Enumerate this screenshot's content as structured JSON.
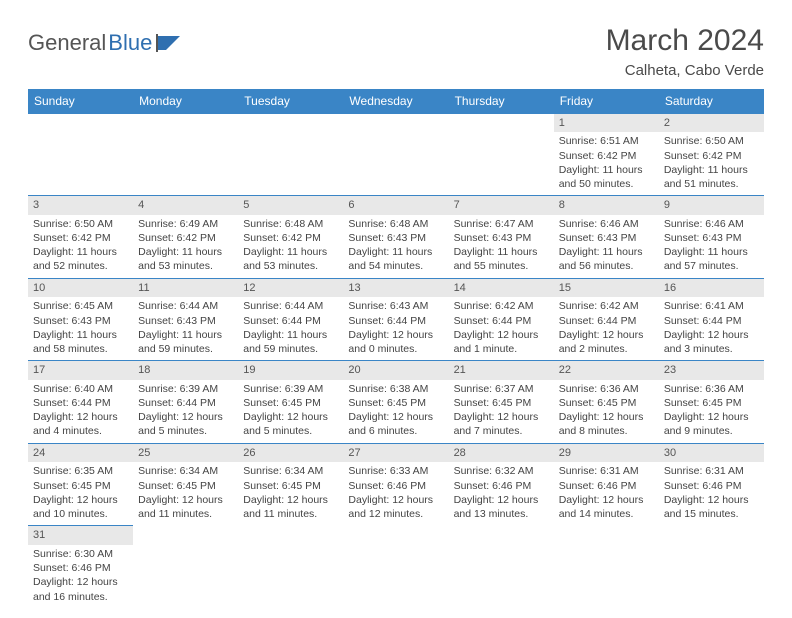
{
  "logo": {
    "text1": "General",
    "text2": "Blue"
  },
  "title": "March 2024",
  "subtitle": "Calheta, Cabo Verde",
  "dayHeaders": [
    "Sunday",
    "Monday",
    "Tuesday",
    "Wednesday",
    "Thursday",
    "Friday",
    "Saturday"
  ],
  "colors": {
    "headerBg": "#3a85c6",
    "headerText": "#ffffff",
    "dayNumBg": "#e8e8e8",
    "border": "#3a85c6",
    "logoBlue": "#2f6fb0"
  },
  "weeks": [
    [
      {
        "n": "",
        "sr": "",
        "ss": "",
        "dl": ""
      },
      {
        "n": "",
        "sr": "",
        "ss": "",
        "dl": ""
      },
      {
        "n": "",
        "sr": "",
        "ss": "",
        "dl": ""
      },
      {
        "n": "",
        "sr": "",
        "ss": "",
        "dl": ""
      },
      {
        "n": "",
        "sr": "",
        "ss": "",
        "dl": ""
      },
      {
        "n": "1",
        "sr": "Sunrise: 6:51 AM",
        "ss": "Sunset: 6:42 PM",
        "dl": "Daylight: 11 hours and 50 minutes."
      },
      {
        "n": "2",
        "sr": "Sunrise: 6:50 AM",
        "ss": "Sunset: 6:42 PM",
        "dl": "Daylight: 11 hours and 51 minutes."
      }
    ],
    [
      {
        "n": "3",
        "sr": "Sunrise: 6:50 AM",
        "ss": "Sunset: 6:42 PM",
        "dl": "Daylight: 11 hours and 52 minutes."
      },
      {
        "n": "4",
        "sr": "Sunrise: 6:49 AM",
        "ss": "Sunset: 6:42 PM",
        "dl": "Daylight: 11 hours and 53 minutes."
      },
      {
        "n": "5",
        "sr": "Sunrise: 6:48 AM",
        "ss": "Sunset: 6:42 PM",
        "dl": "Daylight: 11 hours and 53 minutes."
      },
      {
        "n": "6",
        "sr": "Sunrise: 6:48 AM",
        "ss": "Sunset: 6:43 PM",
        "dl": "Daylight: 11 hours and 54 minutes."
      },
      {
        "n": "7",
        "sr": "Sunrise: 6:47 AM",
        "ss": "Sunset: 6:43 PM",
        "dl": "Daylight: 11 hours and 55 minutes."
      },
      {
        "n": "8",
        "sr": "Sunrise: 6:46 AM",
        "ss": "Sunset: 6:43 PM",
        "dl": "Daylight: 11 hours and 56 minutes."
      },
      {
        "n": "9",
        "sr": "Sunrise: 6:46 AM",
        "ss": "Sunset: 6:43 PM",
        "dl": "Daylight: 11 hours and 57 minutes."
      }
    ],
    [
      {
        "n": "10",
        "sr": "Sunrise: 6:45 AM",
        "ss": "Sunset: 6:43 PM",
        "dl": "Daylight: 11 hours and 58 minutes."
      },
      {
        "n": "11",
        "sr": "Sunrise: 6:44 AM",
        "ss": "Sunset: 6:43 PM",
        "dl": "Daylight: 11 hours and 59 minutes."
      },
      {
        "n": "12",
        "sr": "Sunrise: 6:44 AM",
        "ss": "Sunset: 6:44 PM",
        "dl": "Daylight: 11 hours and 59 minutes."
      },
      {
        "n": "13",
        "sr": "Sunrise: 6:43 AM",
        "ss": "Sunset: 6:44 PM",
        "dl": "Daylight: 12 hours and 0 minutes."
      },
      {
        "n": "14",
        "sr": "Sunrise: 6:42 AM",
        "ss": "Sunset: 6:44 PM",
        "dl": "Daylight: 12 hours and 1 minute."
      },
      {
        "n": "15",
        "sr": "Sunrise: 6:42 AM",
        "ss": "Sunset: 6:44 PM",
        "dl": "Daylight: 12 hours and 2 minutes."
      },
      {
        "n": "16",
        "sr": "Sunrise: 6:41 AM",
        "ss": "Sunset: 6:44 PM",
        "dl": "Daylight: 12 hours and 3 minutes."
      }
    ],
    [
      {
        "n": "17",
        "sr": "Sunrise: 6:40 AM",
        "ss": "Sunset: 6:44 PM",
        "dl": "Daylight: 12 hours and 4 minutes."
      },
      {
        "n": "18",
        "sr": "Sunrise: 6:39 AM",
        "ss": "Sunset: 6:44 PM",
        "dl": "Daylight: 12 hours and 5 minutes."
      },
      {
        "n": "19",
        "sr": "Sunrise: 6:39 AM",
        "ss": "Sunset: 6:45 PM",
        "dl": "Daylight: 12 hours and 5 minutes."
      },
      {
        "n": "20",
        "sr": "Sunrise: 6:38 AM",
        "ss": "Sunset: 6:45 PM",
        "dl": "Daylight: 12 hours and 6 minutes."
      },
      {
        "n": "21",
        "sr": "Sunrise: 6:37 AM",
        "ss": "Sunset: 6:45 PM",
        "dl": "Daylight: 12 hours and 7 minutes."
      },
      {
        "n": "22",
        "sr": "Sunrise: 6:36 AM",
        "ss": "Sunset: 6:45 PM",
        "dl": "Daylight: 12 hours and 8 minutes."
      },
      {
        "n": "23",
        "sr": "Sunrise: 6:36 AM",
        "ss": "Sunset: 6:45 PM",
        "dl": "Daylight: 12 hours and 9 minutes."
      }
    ],
    [
      {
        "n": "24",
        "sr": "Sunrise: 6:35 AM",
        "ss": "Sunset: 6:45 PM",
        "dl": "Daylight: 12 hours and 10 minutes."
      },
      {
        "n": "25",
        "sr": "Sunrise: 6:34 AM",
        "ss": "Sunset: 6:45 PM",
        "dl": "Daylight: 12 hours and 11 minutes."
      },
      {
        "n": "26",
        "sr": "Sunrise: 6:34 AM",
        "ss": "Sunset: 6:45 PM",
        "dl": "Daylight: 12 hours and 11 minutes."
      },
      {
        "n": "27",
        "sr": "Sunrise: 6:33 AM",
        "ss": "Sunset: 6:46 PM",
        "dl": "Daylight: 12 hours and 12 minutes."
      },
      {
        "n": "28",
        "sr": "Sunrise: 6:32 AM",
        "ss": "Sunset: 6:46 PM",
        "dl": "Daylight: 12 hours and 13 minutes."
      },
      {
        "n": "29",
        "sr": "Sunrise: 6:31 AM",
        "ss": "Sunset: 6:46 PM",
        "dl": "Daylight: 12 hours and 14 minutes."
      },
      {
        "n": "30",
        "sr": "Sunrise: 6:31 AM",
        "ss": "Sunset: 6:46 PM",
        "dl": "Daylight: 12 hours and 15 minutes."
      }
    ],
    [
      {
        "n": "31",
        "sr": "Sunrise: 6:30 AM",
        "ss": "Sunset: 6:46 PM",
        "dl": "Daylight: 12 hours and 16 minutes."
      },
      {
        "n": "",
        "sr": "",
        "ss": "",
        "dl": ""
      },
      {
        "n": "",
        "sr": "",
        "ss": "",
        "dl": ""
      },
      {
        "n": "",
        "sr": "",
        "ss": "",
        "dl": ""
      },
      {
        "n": "",
        "sr": "",
        "ss": "",
        "dl": ""
      },
      {
        "n": "",
        "sr": "",
        "ss": "",
        "dl": ""
      },
      {
        "n": "",
        "sr": "",
        "ss": "",
        "dl": ""
      }
    ]
  ]
}
